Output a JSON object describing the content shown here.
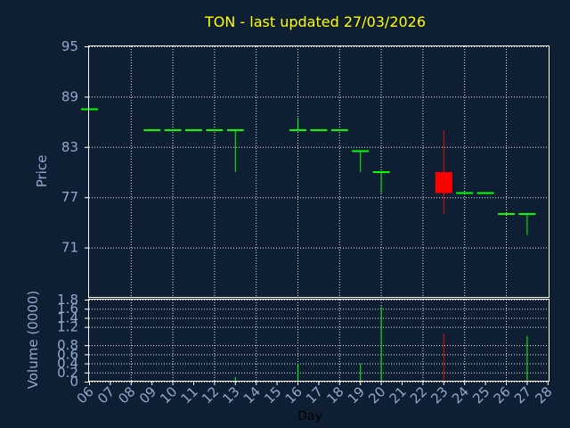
{
  "chart_data": {
    "type": "candlestick",
    "title": "TON - last updated 27/03/2026",
    "xlabel": "Day",
    "price": {
      "ylabel": "Price",
      "ylim": [
        65,
        95
      ],
      "yticks": [
        "95",
        "89",
        "83",
        "77",
        "71"
      ],
      "ytick_values": [
        95,
        89,
        83,
        77,
        71
      ]
    },
    "volume": {
      "ylabel": "Volume (0000)",
      "ylim": [
        0,
        1.8
      ],
      "yticks": [
        "1.8",
        "1.6",
        "1.4",
        "1.2",
        "0.8",
        "0.6",
        "0.4",
        "0.2",
        "0"
      ],
      "ytick_values": [
        1.8,
        1.6,
        1.4,
        1.2,
        0.8,
        0.6,
        0.4,
        0.2,
        0
      ]
    },
    "x_ticks": [
      "06",
      "07",
      "08",
      "09",
      "10",
      "11",
      "12",
      "13",
      "14",
      "15",
      "16",
      "17",
      "18",
      "19",
      "20",
      "21",
      "22",
      "23",
      "24",
      "25",
      "26",
      "27",
      "28"
    ],
    "up_color": "#00ff00",
    "down_color": "#ff0000",
    "candles": [
      {
        "day": "06",
        "open": 87.5,
        "high": 87.5,
        "low": 87.5,
        "close": 87.5,
        "volume": 0
      },
      {
        "day": "09",
        "open": 85,
        "high": 85,
        "low": 85,
        "close": 85,
        "volume": 0
      },
      {
        "day": "10",
        "open": 85,
        "high": 85,
        "low": 85,
        "close": 85,
        "volume": 0
      },
      {
        "day": "11",
        "open": 85,
        "high": 85,
        "low": 85,
        "close": 85,
        "volume": 0
      },
      {
        "day": "12",
        "open": 85,
        "high": 85,
        "low": 85,
        "close": 85,
        "volume": 0
      },
      {
        "day": "13",
        "open": 85,
        "high": 85,
        "low": 80,
        "close": 85,
        "volume": 0.1
      },
      {
        "day": "16",
        "open": 85,
        "high": 86.5,
        "low": 85,
        "close": 85,
        "volume": 0.4
      },
      {
        "day": "17",
        "open": 85,
        "high": 85,
        "low": 85,
        "close": 85,
        "volume": 0
      },
      {
        "day": "18",
        "open": 85,
        "high": 85,
        "low": 85,
        "close": 85,
        "volume": 0
      },
      {
        "day": "19",
        "open": 82.5,
        "high": 82.5,
        "low": 80,
        "close": 82.5,
        "volume": 0.4
      },
      {
        "day": "20",
        "open": 80,
        "high": 80,
        "low": 77.5,
        "close": 80,
        "volume": 1.65
      },
      {
        "day": "23",
        "open": 80,
        "high": 85,
        "low": 75,
        "close": 77.5,
        "volume": 1.05
      },
      {
        "day": "24",
        "open": 77.5,
        "high": 77.5,
        "low": 77.5,
        "close": 77.5,
        "volume": 0
      },
      {
        "day": "25",
        "open": 77.5,
        "high": 77.5,
        "low": 77.5,
        "close": 77.5,
        "volume": 0
      },
      {
        "day": "26",
        "open": 75,
        "high": 75,
        "low": 75,
        "close": 75,
        "volume": 0
      },
      {
        "day": "27",
        "open": 75,
        "high": 75,
        "low": 72.5,
        "close": 75,
        "volume": 1.0
      }
    ]
  }
}
